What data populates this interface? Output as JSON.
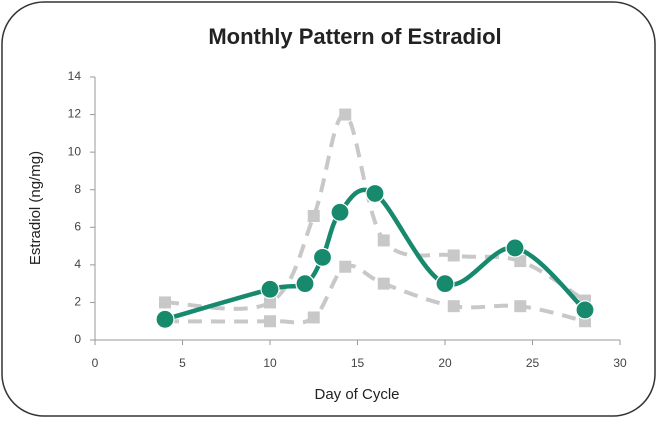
{
  "chart_data": {
    "type": "line",
    "title": "Monthly Pattern of Estradiol",
    "x_label": "Day of Cycle",
    "y_label": "Estradiol (ng/mg)",
    "xlim": [
      0,
      30
    ],
    "xticks": [
      0,
      5,
      10,
      15,
      20,
      25,
      30
    ],
    "ylim": [
      0,
      14
    ],
    "yticks": [
      0,
      2,
      4,
      6,
      8,
      10,
      12,
      14
    ],
    "grid": false,
    "series": [
      {
        "color": "#c8c8c8",
        "line_style": "dashed",
        "marker": "square",
        "x": [
          4,
          10,
          12.5,
          14.3,
          16.5,
          20.5,
          24.3,
          28
        ],
        "values": [
          2,
          2,
          6.6,
          12,
          5.3,
          4.5,
          4.2,
          2.1
        ]
      },
      {
        "color": "#c8c8c8",
        "line_style": "dashed",
        "marker": "square",
        "x": [
          4,
          10,
          12.5,
          14.3,
          16.5,
          20.5,
          24.3,
          28
        ],
        "values": [
          1,
          1,
          1.2,
          3.9,
          3,
          1.8,
          1.8,
          1
        ]
      },
      {
        "color": "#178a6e",
        "line_style": "solid",
        "marker": "circle",
        "x": [
          4,
          10,
          12,
          13,
          14,
          16,
          20,
          24,
          28
        ],
        "values": [
          1.1,
          2.7,
          3,
          4.4,
          6.8,
          7.8,
          3,
          4.9,
          1.6
        ]
      }
    ]
  }
}
